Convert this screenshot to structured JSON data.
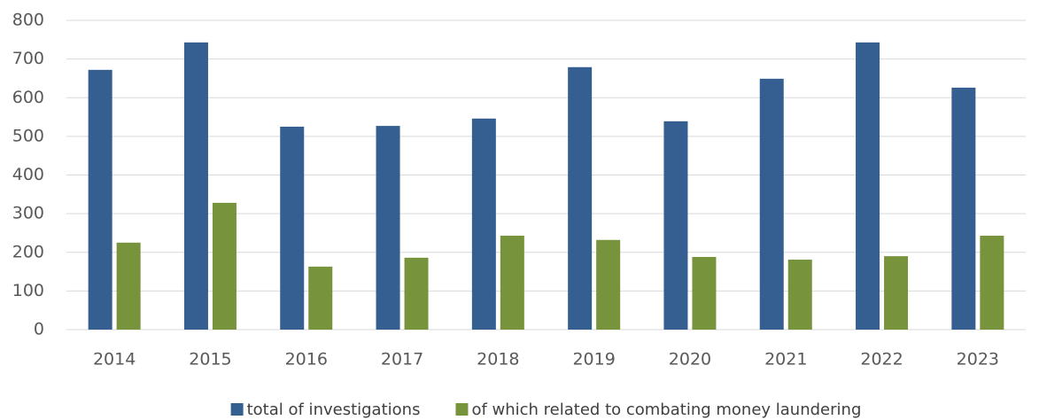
{
  "chart_data": {
    "type": "bar",
    "categories": [
      "2014",
      "2015",
      "2016",
      "2017",
      "2018",
      "2019",
      "2020",
      "2021",
      "2022",
      "2023"
    ],
    "series": [
      {
        "name": "total of investigations",
        "color": "#365f91",
        "values": [
          672,
          743,
          525,
          527,
          546,
          679,
          539,
          649,
          743,
          626
        ]
      },
      {
        "name": "of which related to combating money laundering",
        "color": "#77933c",
        "values": [
          225,
          328,
          163,
          186,
          243,
          232,
          188,
          181,
          190,
          243
        ]
      }
    ],
    "ylim": [
      0,
      800
    ],
    "yticks": [
      0,
      100,
      200,
      300,
      400,
      500,
      600,
      700,
      800
    ],
    "grid": true,
    "legend": "bottom"
  }
}
